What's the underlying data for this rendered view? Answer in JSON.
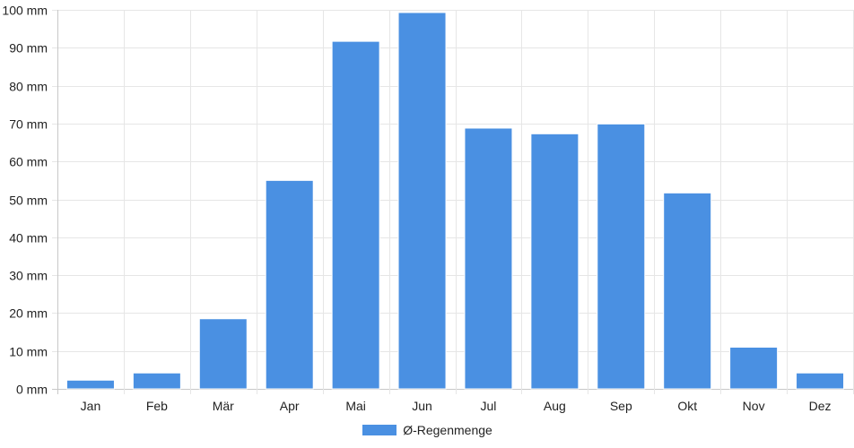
{
  "chart_data": {
    "type": "bar",
    "categories": [
      "Jan",
      "Feb",
      "Mär",
      "Apr",
      "Mai",
      "Jun",
      "Jul",
      "Aug",
      "Sep",
      "Okt",
      "Nov",
      "Dez"
    ],
    "series": [
      {
        "name": "Ø-Regenmenge",
        "values": [
          2.3,
          4.2,
          18.5,
          55.0,
          91.7,
          99.3,
          68.8,
          67.3,
          69.9,
          51.7,
          11.0,
          4.2
        ],
        "color": "#4a90e2"
      }
    ],
    "ylim": [
      0,
      100
    ],
    "yticks": [
      0,
      10,
      20,
      30,
      40,
      50,
      60,
      70,
      80,
      90,
      100
    ],
    "y_unit": "mm",
    "grid": true,
    "legend_position": "bottom",
    "title": "",
    "xlabel": "",
    "ylabel": ""
  }
}
